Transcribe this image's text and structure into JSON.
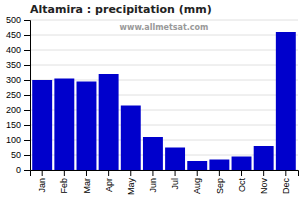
{
  "chart_data": {
    "type": "bar",
    "title": "Altamira : precipitation (mm)",
    "categories": [
      "Jan",
      "Feb",
      "Mar",
      "Apr",
      "May",
      "Jun",
      "Jul",
      "Aug",
      "Sep",
      "Oct",
      "Nov",
      "Dec"
    ],
    "values": [
      300,
      305,
      295,
      320,
      215,
      110,
      75,
      30,
      35,
      45,
      80,
      460
    ],
    "color": "#0000cc",
    "ylim": [
      0,
      500
    ],
    "yticks": [
      0,
      50,
      100,
      150,
      200,
      250,
      300,
      350,
      400,
      450,
      500
    ],
    "grid": true,
    "annotations": [
      "www.allmetsat.com"
    ]
  }
}
